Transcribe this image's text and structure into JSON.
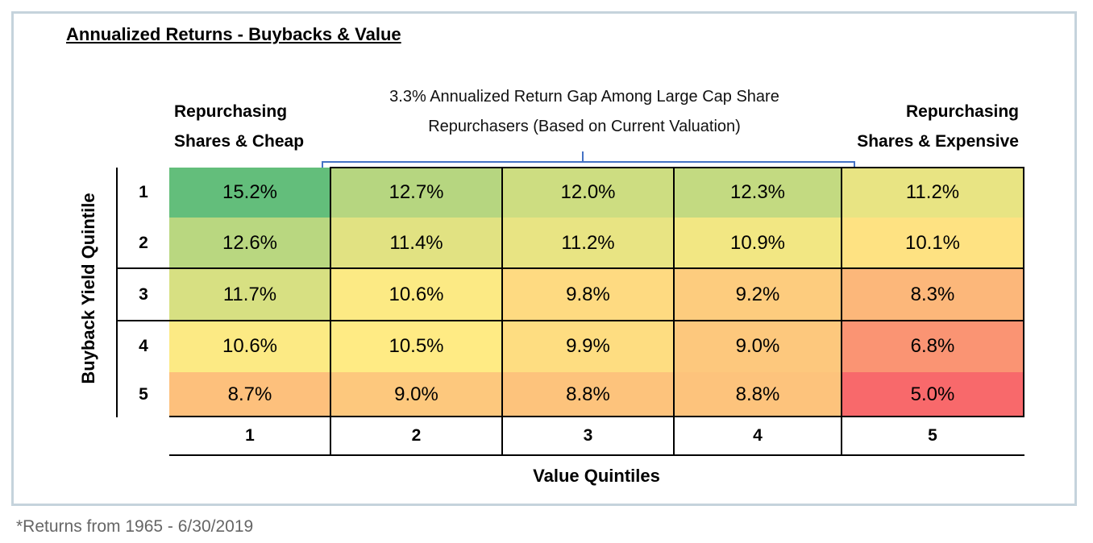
{
  "chart_data": {
    "type": "heatmap",
    "title": "Annualized Returns - Buybacks & Value",
    "xlabel": "Value Quintiles",
    "ylabel": "Buyback Yield Quintile",
    "x_categories": [
      "1",
      "2",
      "3",
      "4",
      "5"
    ],
    "y_categories": [
      "1",
      "2",
      "3",
      "4",
      "5"
    ],
    "values": [
      [
        15.2,
        12.7,
        12.0,
        12.3,
        11.2
      ],
      [
        12.6,
        11.4,
        11.2,
        10.9,
        10.1
      ],
      [
        11.7,
        10.6,
        9.8,
        9.2,
        8.3
      ],
      [
        10.6,
        10.5,
        9.9,
        9.0,
        6.8
      ],
      [
        8.7,
        9.0,
        8.8,
        8.8,
        5.0
      ]
    ],
    "labels": [
      [
        "15.2%",
        "12.7%",
        "12.0%",
        "12.3%",
        "11.2%"
      ],
      [
        "12.6%",
        "11.4%",
        "11.2%",
        "10.9%",
        "10.1%"
      ],
      [
        "11.7%",
        "10.6%",
        "9.8%",
        "9.2%",
        "8.3%"
      ],
      [
        "10.6%",
        "10.5%",
        "9.9%",
        "9.0%",
        "6.8%"
      ],
      [
        "8.7%",
        "9.0%",
        "8.8%",
        "8.8%",
        "5.0%"
      ]
    ],
    "color_scale": {
      "min": "#f8696b",
      "mid": "#ffeb84",
      "max": "#63be7b"
    },
    "annotations": {
      "left": [
        "Repurchasing",
        "Shares & Cheap"
      ],
      "right": [
        "Repurchasing",
        "Shares & Expensive"
      ],
      "center": [
        "3.3% Annualized Return Gap Among Large Cap Share",
        "Repurchasers (Based on Current Valuation)"
      ]
    },
    "bracket_color": "#4472c4"
  },
  "footnote": "*Returns from 1965 - 6/30/2019"
}
